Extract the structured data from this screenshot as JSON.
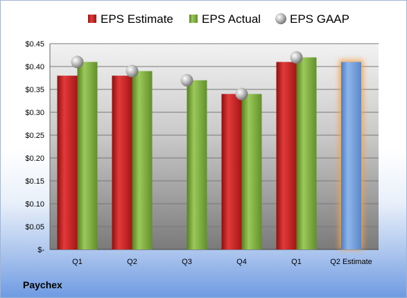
{
  "company": "Paychex",
  "colors": {
    "estimate": "#c81e1e",
    "actual": "#79a83a",
    "gaap": "#b9b9b9",
    "future_estimate": "#6d9ad6",
    "future_glow": "#f5a14a"
  },
  "chart_data": {
    "type": "bar",
    "categories": [
      "Q1",
      "Q2",
      "Q3",
      "Q4",
      "Q1",
      "Q2 Estimate"
    ],
    "series": [
      {
        "name": "EPS Estimate",
        "values": [
          0.38,
          0.38,
          null,
          0.34,
          0.41,
          0.41
        ]
      },
      {
        "name": "EPS Actual",
        "values": [
          0.41,
          0.39,
          0.37,
          0.34,
          0.42,
          null
        ]
      },
      {
        "name": "EPS GAAP",
        "values": [
          0.41,
          0.39,
          0.37,
          0.34,
          0.42,
          null
        ]
      }
    ],
    "highlighted_category": "Q2 Estimate",
    "ylim": [
      0,
      0.45
    ],
    "yticks": [
      0,
      0.05,
      0.1,
      0.15,
      0.2,
      0.25,
      0.3,
      0.35,
      0.4,
      0.45
    ],
    "ytick_labels": [
      "$-",
      "$0.05",
      "$0.10",
      "$0.15",
      "$0.20",
      "$0.25",
      "$0.30",
      "$0.35",
      "$0.40",
      "$0.45"
    ],
    "legend_position": "top",
    "grid": true
  }
}
